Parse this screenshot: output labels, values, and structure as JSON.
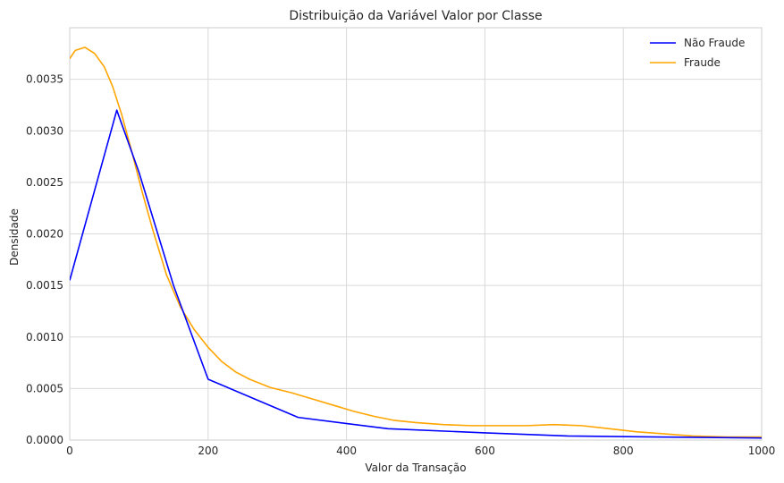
{
  "chart_data": {
    "type": "line",
    "title": "Distribuição da Variável Valor por Classe",
    "xlabel": "Valor da Transação",
    "ylabel": "Densidade",
    "xlim": [
      0,
      1000
    ],
    "ylim": [
      0,
      0.004
    ],
    "x_ticks": [
      0,
      200,
      400,
      600,
      800,
      1000
    ],
    "y_ticks": [
      0.0,
      0.0005,
      0.001,
      0.0015,
      0.002,
      0.0025,
      0.003,
      0.0035
    ],
    "x_tick_labels": [
      "0",
      "200",
      "400",
      "600",
      "800",
      "1000"
    ],
    "y_tick_labels": [
      "0.0000",
      "0.0005",
      "0.0010",
      "0.0015",
      "0.0020",
      "0.0025",
      "0.0030",
      "0.0035"
    ],
    "grid": true,
    "legend_position": "top-right",
    "series": [
      {
        "name": "Não Fraude",
        "color": "#0000ff",
        "x": [
          0,
          68,
          100,
          150,
          200,
          330,
          460,
          600,
          720,
          850,
          1000
        ],
        "y": [
          0.00155,
          0.0032,
          0.0026,
          0.0015,
          0.00059,
          0.00022,
          0.00011,
          7e-05,
          4e-05,
          3e-05,
          2e-05
        ]
      },
      {
        "name": "Fraude",
        "color": "#ffa500",
        "x": [
          0,
          8,
          22,
          36,
          50,
          62,
          75,
          90,
          105,
          120,
          140,
          160,
          180,
          200,
          220,
          240,
          260,
          290,
          320,
          350,
          380,
          410,
          440,
          470,
          500,
          540,
          580,
          620,
          660,
          700,
          740,
          780,
          820,
          860,
          900,
          950,
          1000
        ],
        "y": [
          0.0037,
          0.00378,
          0.00381,
          0.00375,
          0.00362,
          0.00343,
          0.00316,
          0.00279,
          0.0024,
          0.00204,
          0.0016,
          0.00129,
          0.00107,
          0.0009,
          0.00076,
          0.00066,
          0.00059,
          0.00051,
          0.00046,
          0.0004,
          0.00034,
          0.00028,
          0.00023,
          0.00019,
          0.00017,
          0.00015,
          0.00014,
          0.00014,
          0.00014,
          0.00015,
          0.00014,
          0.00011,
          8e-05,
          6e-05,
          4e-05,
          3e-05,
          3e-05
        ]
      }
    ]
  }
}
